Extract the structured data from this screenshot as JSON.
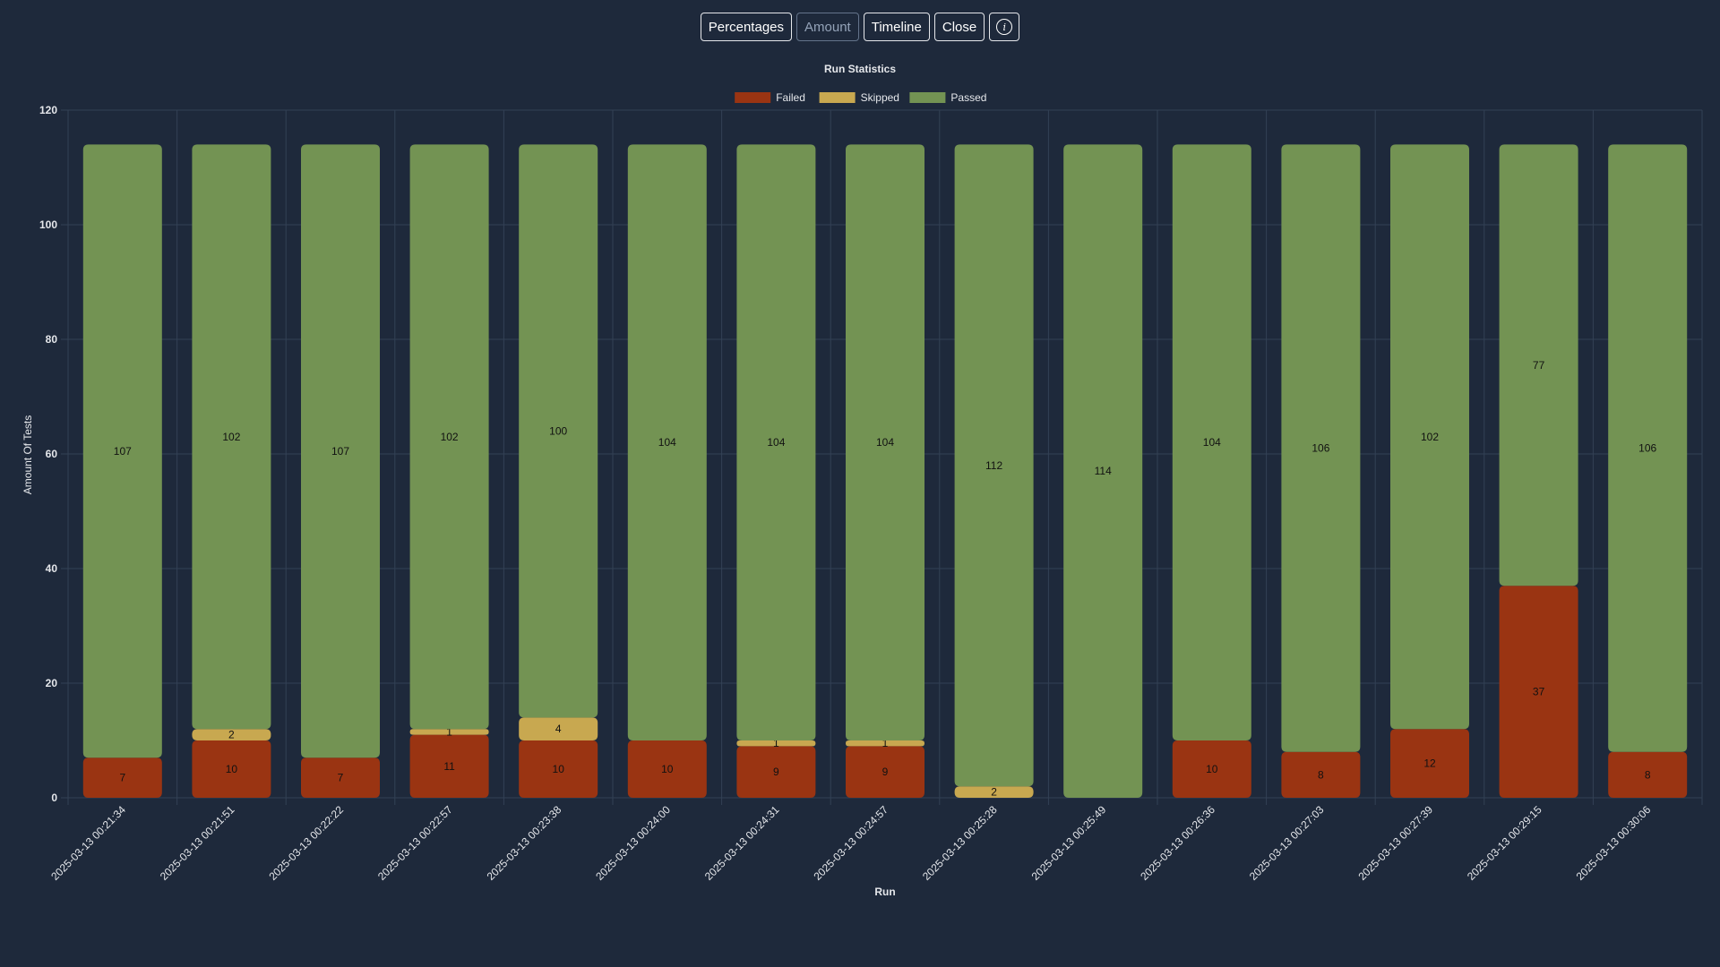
{
  "toolbar": {
    "buttons": [
      {
        "label": "Percentages",
        "enabled": true
      },
      {
        "label": "Amount",
        "enabled": false
      },
      {
        "label": "Timeline",
        "enabled": true
      },
      {
        "label": "Close",
        "enabled": true
      }
    ],
    "info_icon": "info-circle-icon",
    "info_glyph": "i"
  },
  "chart_data": {
    "type": "bar",
    "stacked": true,
    "title": "Run Statistics",
    "xlabel": "Run",
    "ylabel": "Amount Of Tests",
    "ylim": [
      0,
      120
    ],
    "yticks": [
      0,
      20,
      40,
      60,
      80,
      100,
      120
    ],
    "grid": true,
    "legend_position": "top",
    "categories": [
      "2025-03-13 00:21:34",
      "2025-03-13 00:21:51",
      "2025-03-13 00:22:22",
      "2025-03-13 00:22:57",
      "2025-03-13 00:23:38",
      "2025-03-13 00:24:00",
      "2025-03-13 00:24:31",
      "2025-03-13 00:24:57",
      "2025-03-13 00:25:28",
      "2025-03-13 00:25:49",
      "2025-03-13 00:26:36",
      "2025-03-13 00:27:03",
      "2025-03-13 00:27:39",
      "2025-03-13 00:29:15",
      "2025-03-13 00:30:06"
    ],
    "series": [
      {
        "name": "Failed",
        "color": "#9a3412",
        "values": [
          7,
          10,
          7,
          11,
          10,
          10,
          9,
          9,
          0,
          0,
          10,
          8,
          12,
          37,
          8
        ]
      },
      {
        "name": "Skipped",
        "color": "#c8a850",
        "values": [
          0,
          2,
          0,
          1,
          4,
          0,
          1,
          1,
          2,
          0,
          0,
          0,
          0,
          0,
          0
        ]
      },
      {
        "name": "Passed",
        "color": "#739353",
        "values": [
          107,
          102,
          107,
          102,
          100,
          104,
          104,
          104,
          112,
          114,
          104,
          106,
          102,
          77,
          106
        ]
      }
    ],
    "colors": {
      "background": "#1e293b",
      "grid": "#334155",
      "axis_text": "#e5e7eb",
      "data_label": "#111111"
    }
  }
}
